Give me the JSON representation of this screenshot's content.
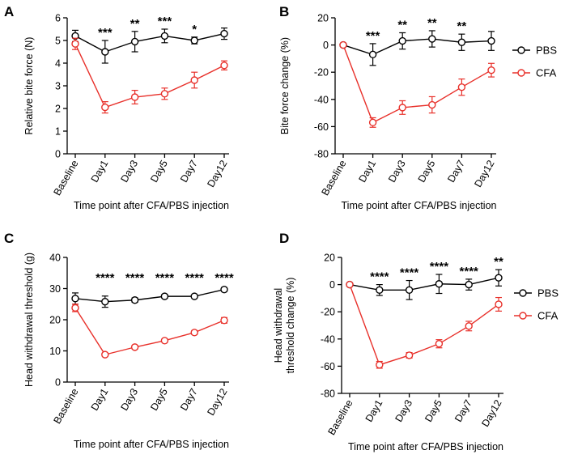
{
  "colors": {
    "pbs": "#000000",
    "cfa": "#e8302a"
  },
  "legend_labels": [
    "PBS",
    "CFA"
  ],
  "chart_data": [
    {
      "id": "A",
      "type": "line",
      "panel_label": "A",
      "ylabel": "Relative bite force (N)",
      "xlabel": "Time point after CFA/PBS injection",
      "categories": [
        "Baseline",
        "Day1",
        "Day3",
        "Day5",
        "Day7",
        "Day12"
      ],
      "ylim": [
        0,
        6
      ],
      "yticks": [
        0,
        1,
        2,
        3,
        4,
        5,
        6
      ],
      "legend": false,
      "significance": [
        "",
        "***",
        "**",
        "***",
        "*",
        ""
      ],
      "series": [
        {
          "name": "PBS",
          "values": [
            5.2,
            4.5,
            4.95,
            5.2,
            5.0,
            5.3
          ],
          "errors": [
            0.25,
            0.5,
            0.45,
            0.3,
            0.15,
            0.25
          ]
        },
        {
          "name": "CFA",
          "values": [
            4.85,
            2.05,
            2.5,
            2.65,
            3.25,
            3.9
          ],
          "errors": [
            0.25,
            0.25,
            0.3,
            0.25,
            0.35,
            0.2
          ]
        }
      ]
    },
    {
      "id": "B",
      "type": "line",
      "panel_label": "B",
      "ylabel": "Bite force change (%)",
      "xlabel": "Time point after CFA/PBS injection",
      "categories": [
        "Baseline",
        "Day1",
        "Day3",
        "Day5",
        "Day7",
        "Day12"
      ],
      "ylim": [
        -80,
        20
      ],
      "yticks": [
        -80,
        -60,
        -40,
        -20,
        0,
        20
      ],
      "legend": true,
      "significance": [
        "",
        "***",
        "**",
        "**",
        "**",
        ""
      ],
      "series": [
        {
          "name": "PBS",
          "values": [
            0,
            -7,
            3,
            4.5,
            2,
            3
          ],
          "errors": [
            1,
            8,
            6,
            6,
            6,
            7
          ]
        },
        {
          "name": "CFA",
          "values": [
            0,
            -57,
            -46,
            -44,
            -31,
            -18.5
          ],
          "errors": [
            1,
            3.5,
            5,
            6,
            6,
            5
          ]
        }
      ]
    },
    {
      "id": "C",
      "type": "line",
      "panel_label": "C",
      "ylabel": "Head withdrawal threshold (g)",
      "xlabel": "Time point after CFA/PBS injection",
      "categories": [
        "Baseline",
        "Day1",
        "Day3",
        "Day5",
        "Day7",
        "Day12"
      ],
      "ylim": [
        0,
        40
      ],
      "yticks": [
        0,
        10,
        20,
        30,
        40
      ],
      "legend": false,
      "significance": [
        "",
        "****",
        "****",
        "****",
        "****",
        "****"
      ],
      "series": [
        {
          "name": "PBS",
          "values": [
            26.8,
            25.8,
            26.3,
            27.5,
            27.5,
            29.7
          ],
          "errors": [
            1.8,
            1.8,
            0.7,
            0.6,
            0.4,
            0.6
          ]
        },
        {
          "name": "CFA",
          "values": [
            23.8,
            8.8,
            11.2,
            13.3,
            15.9,
            19.8
          ],
          "errors": [
            1.2,
            0.5,
            0.6,
            0.5,
            0.6,
            0.9
          ]
        }
      ]
    },
    {
      "id": "D",
      "type": "line",
      "panel_label": "D",
      "ylabel": "Head withdrawal\nthreshold change (%)",
      "xlabel": "Time point after CFA/PBS injection",
      "categories": [
        "Baseline",
        "Day1",
        "Day3",
        "Day5",
        "Day7",
        "Day12"
      ],
      "ylim": [
        -80,
        20
      ],
      "yticks": [
        -80,
        -60,
        -40,
        -20,
        0,
        20
      ],
      "legend": true,
      "significance": [
        "",
        "****",
        "****",
        "****",
        "****",
        "**"
      ],
      "series": [
        {
          "name": "PBS",
          "values": [
            0,
            -4,
            -4,
            0.5,
            0,
            5
          ],
          "errors": [
            0.5,
            4,
            7,
            7,
            4,
            6
          ]
        },
        {
          "name": "CFA",
          "values": [
            0,
            -59,
            -52,
            -43.5,
            -30.5,
            -14.5
          ],
          "errors": [
            0.5,
            2.5,
            2,
            3,
            3.5,
            5
          ]
        }
      ]
    }
  ]
}
